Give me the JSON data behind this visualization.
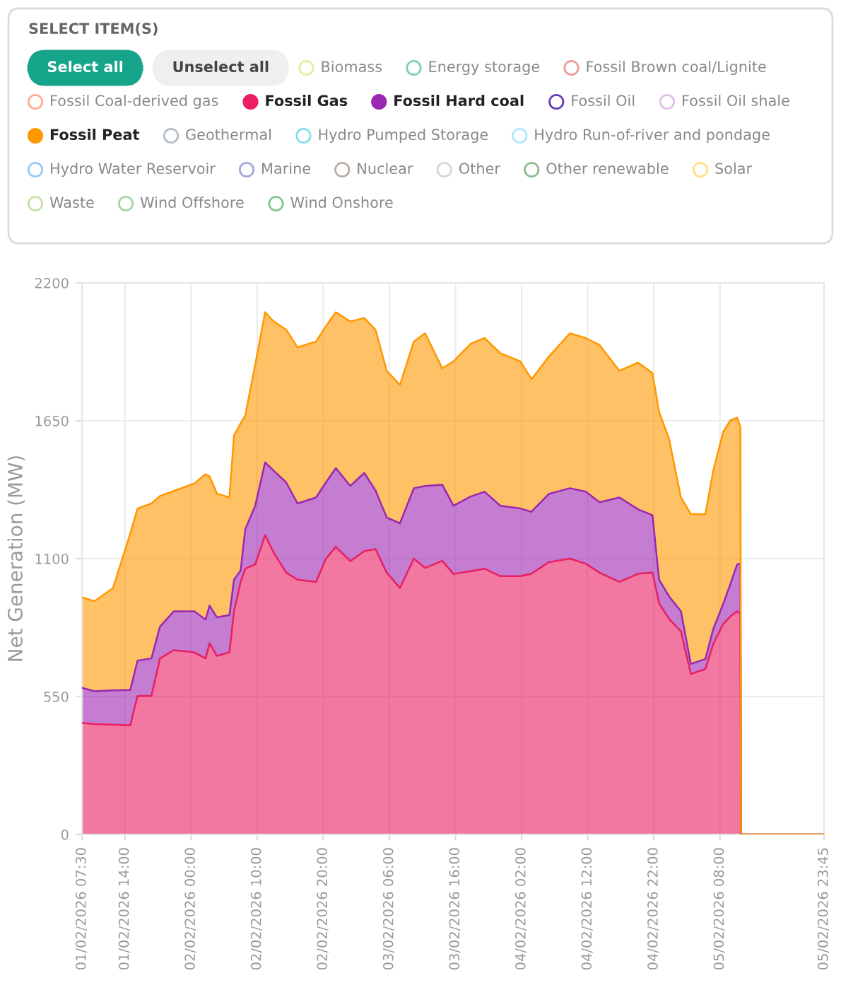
{
  "chart_data": {
    "type": "area",
    "stacked": true,
    "legend_title": "SELECT ITEM(S)",
    "legend": "top",
    "grid": true,
    "annotations": [
      "Select all",
      "Unselect all"
    ],
    "ylabel": "Net Generation (MW)",
    "ylim": [
      0,
      2200
    ],
    "yticks": [
      0,
      550,
      1100,
      1650,
      2200
    ],
    "xlim": [
      "2026-02-01T07:30",
      "2026-02-05T23:45"
    ],
    "xticks": [
      {
        "value": "2026-02-01T07:30",
        "label": "01/02/2026 07:30"
      },
      {
        "value": "2026-02-01T14:00",
        "label": "01/02/2026 14:00"
      },
      {
        "value": "2026-02-02T00:00",
        "label": "02/02/2026 00:00"
      },
      {
        "value": "2026-02-02T10:00",
        "label": "02/02/2026 10:00"
      },
      {
        "value": "2026-02-02T20:00",
        "label": "02/02/2026 20:00"
      },
      {
        "value": "2026-02-03T06:00",
        "label": "03/02/2026 06:00"
      },
      {
        "value": "2026-02-03T16:00",
        "label": "03/02/2026 16:00"
      },
      {
        "value": "2026-02-04T02:00",
        "label": "04/02/2026 02:00"
      },
      {
        "value": "2026-02-04T12:00",
        "label": "04/02/2026 12:00"
      },
      {
        "value": "2026-02-04T22:00",
        "label": "04/02/2026 22:00"
      },
      {
        "value": "2026-02-05T08:00",
        "label": "05/02/2026 08:00"
      },
      {
        "value": "2026-02-05T23:45",
        "label": "05/02/2026 23:45"
      }
    ],
    "x": [
      "2026-02-01T07:30",
      "2026-02-01T09:24",
      "2026-02-01T12:12",
      "2026-02-01T14:48",
      "2026-02-01T15:54",
      "2026-02-01T18:00",
      "2026-02-01T19:18",
      "2026-02-01T21:24",
      "2026-02-02T00:30",
      "2026-02-02T02:12",
      "2026-02-02T02:48",
      "2026-02-02T03:54",
      "2026-02-02T05:48",
      "2026-02-02T06:30",
      "2026-02-02T07:30",
      "2026-02-02T08:12",
      "2026-02-02T09:42",
      "2026-02-02T11:12",
      "2026-02-02T12:30",
      "2026-02-02T14:24",
      "2026-02-02T16:06",
      "2026-02-02T18:54",
      "2026-02-02T20:24",
      "2026-02-02T21:54",
      "2026-02-03T00:06",
      "2026-02-03T02:12",
      "2026-02-03T03:54",
      "2026-02-03T05:36",
      "2026-02-03T07:36",
      "2026-02-03T09:42",
      "2026-02-03T11:24",
      "2026-02-03T14:00",
      "2026-02-03T15:42",
      "2026-02-03T18:18",
      "2026-02-03T20:24",
      "2026-02-03T22:48",
      "2026-02-04T01:48",
      "2026-02-04T03:30",
      "2026-02-04T06:06",
      "2026-02-04T09:18",
      "2026-02-04T11:42",
      "2026-02-04T13:48",
      "2026-02-04T16:48",
      "2026-02-04T19:36",
      "2026-02-04T21:48",
      "2026-02-04T22:48",
      "2026-02-05T00:18",
      "2026-02-05T02:06",
      "2026-02-05T03:36",
      "2026-02-05T05:48",
      "2026-02-05T07:00",
      "2026-02-05T08:30",
      "2026-02-05T09:36",
      "2026-02-05T10:36",
      "2026-02-05T11:06",
      "2026-02-05T11:12",
      "2026-02-05T23:45"
    ],
    "series": [
      {
        "name": "Biomass",
        "color": "#e6ee9c",
        "values": [
          null,
          null,
          null,
          null,
          null,
          null,
          null,
          null,
          null,
          null,
          null,
          null,
          null,
          null,
          null,
          null,
          null,
          null,
          null,
          null,
          null,
          null,
          null,
          null,
          null,
          null,
          null,
          null,
          null,
          null,
          null,
          null,
          null,
          null,
          null,
          null,
          null,
          null,
          null,
          null,
          null,
          null,
          null,
          null,
          null,
          null,
          null,
          null,
          null,
          null,
          null,
          null,
          null,
          null,
          null,
          null,
          null
        ]
      },
      {
        "name": "Energy storage",
        "color": "#80cbc4",
        "values": [
          null,
          null,
          null,
          null,
          null,
          null,
          null,
          null,
          null,
          null,
          null,
          null,
          null,
          null,
          null,
          null,
          null,
          null,
          null,
          null,
          null,
          null,
          null,
          null,
          null,
          null,
          null,
          null,
          null,
          null,
          null,
          null,
          null,
          null,
          null,
          null,
          null,
          null,
          null,
          null,
          null,
          null,
          null,
          null,
          null,
          null,
          null,
          null,
          null,
          null,
          null,
          null,
          null,
          null,
          null,
          null,
          null
        ]
      },
      {
        "name": "Fossil Brown coal/Lignite",
        "color": "#ef9a9a",
        "values": [
          null,
          null,
          null,
          null,
          null,
          null,
          null,
          null,
          null,
          null,
          null,
          null,
          null,
          null,
          null,
          null,
          null,
          null,
          null,
          null,
          null,
          null,
          null,
          null,
          null,
          null,
          null,
          null,
          null,
          null,
          null,
          null,
          null,
          null,
          null,
          null,
          null,
          null,
          null,
          null,
          null,
          null,
          null,
          null,
          null,
          null,
          null,
          null,
          null,
          null,
          null,
          null,
          null,
          null,
          null,
          null,
          null
        ]
      },
      {
        "name": "Fossil Coal-derived gas",
        "color": "#ffab91",
        "values": [
          null,
          null,
          null,
          null,
          null,
          null,
          null,
          null,
          null,
          null,
          null,
          null,
          null,
          null,
          null,
          null,
          null,
          null,
          null,
          null,
          null,
          null,
          null,
          null,
          null,
          null,
          null,
          null,
          null,
          null,
          null,
          null,
          null,
          null,
          null,
          null,
          null,
          null,
          null,
          null,
          null,
          null,
          null,
          null,
          null,
          null,
          null,
          null,
          null,
          null,
          null,
          null,
          null,
          null,
          null,
          null,
          null
        ]
      },
      {
        "name": "Fossil Gas",
        "color": "#e91e63",
        "values": [
          445,
          440,
          438,
          435,
          552,
          552,
          702,
          735,
          726,
          702,
          763,
          712,
          726,
          890,
          1007,
          1060,
          1077,
          1194,
          1124,
          1044,
          1016,
          1007,
          1100,
          1147,
          1090,
          1130,
          1138,
          1044,
          983,
          1100,
          1063,
          1091,
          1039,
          1050,
          1060,
          1030,
          1030,
          1040,
          1086,
          1100,
          1080,
          1044,
          1007,
          1040,
          1044,
          922,
          860,
          810,
          640,
          660,
          760,
          840,
          870,
          890,
          880,
          0,
          0
        ]
      },
      {
        "name": "Fossil Hard coal",
        "color": "#9c27b0",
        "values": [
          140,
          131,
          137,
          141,
          141,
          150,
          127,
          155,
          164,
          155,
          150,
          154,
          149,
          126,
          46,
          157,
          234,
          290,
          327,
          360,
          304,
          337,
          304,
          314,
          300,
          312,
          234,
          220,
          258,
          281,
          327,
          304,
          272,
          298,
          307,
          281,
          270,
          247,
          272,
          281,
          287,
          281,
          337,
          257,
          229,
          94,
          90,
          80,
          40,
          40,
          60,
          80,
          130,
          187,
          200,
          0,
          0
        ]
      },
      {
        "name": "Fossil Oil",
        "color": "#673ab7",
        "values": [
          null,
          null,
          null,
          null,
          null,
          null,
          null,
          null,
          null,
          null,
          null,
          null,
          null,
          null,
          null,
          null,
          null,
          null,
          null,
          null,
          null,
          null,
          null,
          null,
          null,
          null,
          null,
          null,
          null,
          null,
          null,
          null,
          null,
          null,
          null,
          null,
          null,
          null,
          null,
          null,
          null,
          null,
          null,
          null,
          null,
          null,
          null,
          null,
          null,
          null,
          null,
          null,
          null,
          null,
          null,
          null,
          null
        ]
      },
      {
        "name": "Fossil Oil shale",
        "color": "#e1bee7",
        "values": [
          null,
          null,
          null,
          null,
          null,
          null,
          null,
          null,
          null,
          null,
          null,
          null,
          null,
          null,
          null,
          null,
          null,
          null,
          null,
          null,
          null,
          null,
          null,
          null,
          null,
          null,
          null,
          null,
          null,
          null,
          null,
          null,
          null,
          null,
          null,
          null,
          null,
          null,
          null,
          null,
          null,
          null,
          null,
          null,
          null,
          null,
          null,
          null,
          null,
          null,
          null,
          null,
          null,
          null,
          null,
          null,
          null
        ]
      },
      {
        "name": "Fossil Peat",
        "color": "#ff9800",
        "values": [
          361,
          359,
          408,
          624,
          607,
          618,
          521,
          480,
          510,
          580,
          515,
          494,
          469,
          576,
          587,
          454,
          562,
          599,
          595,
          609,
          623,
          622,
          623,
          622,
          656,
          618,
          641,
          585,
          552,
          585,
          609,
          464,
          576,
          609,
          613,
          608,
          587,
          529,
          547,
          618,
          613,
          627,
          505,
          585,
          567,
          669,
          628,
          454,
          598,
          578,
          631,
          686,
          652,
          585,
          544,
          0,
          0
        ]
      },
      {
        "name": "Geothermal",
        "color": "#b0bec5",
        "values": [
          null,
          null,
          null,
          null,
          null,
          null,
          null,
          null,
          null,
          null,
          null,
          null,
          null,
          null,
          null,
          null,
          null,
          null,
          null,
          null,
          null,
          null,
          null,
          null,
          null,
          null,
          null,
          null,
          null,
          null,
          null,
          null,
          null,
          null,
          null,
          null,
          null,
          null,
          null,
          null,
          null,
          null,
          null,
          null,
          null,
          null,
          null,
          null,
          null,
          null,
          null,
          null,
          null,
          null,
          null,
          null,
          null
        ]
      },
      {
        "name": "Hydro Pumped Storage",
        "color": "#80deea",
        "values": [
          null,
          null,
          null,
          null,
          null,
          null,
          null,
          null,
          null,
          null,
          null,
          null,
          null,
          null,
          null,
          null,
          null,
          null,
          null,
          null,
          null,
          null,
          null,
          null,
          null,
          null,
          null,
          null,
          null,
          null,
          null,
          null,
          null,
          null,
          null,
          null,
          null,
          null,
          null,
          null,
          null,
          null,
          null,
          null,
          null,
          null,
          null,
          null,
          null,
          null,
          null,
          null,
          null,
          null,
          null,
          null,
          null
        ]
      },
      {
        "name": "Hydro Run-of-river and pondage",
        "color": "#b3e5fc",
        "values": [
          null,
          null,
          null,
          null,
          null,
          null,
          null,
          null,
          null,
          null,
          null,
          null,
          null,
          null,
          null,
          null,
          null,
          null,
          null,
          null,
          null,
          null,
          null,
          null,
          null,
          null,
          null,
          null,
          null,
          null,
          null,
          null,
          null,
          null,
          null,
          null,
          null,
          null,
          null,
          null,
          null,
          null,
          null,
          null,
          null,
          null,
          null,
          null,
          null,
          null,
          null,
          null,
          null,
          null,
          null,
          null,
          null
        ]
      },
      {
        "name": "Hydro Water Reservoir",
        "color": "#90caf9",
        "values": [
          null,
          null,
          null,
          null,
          null,
          null,
          null,
          null,
          null,
          null,
          null,
          null,
          null,
          null,
          null,
          null,
          null,
          null,
          null,
          null,
          null,
          null,
          null,
          null,
          null,
          null,
          null,
          null,
          null,
          null,
          null,
          null,
          null,
          null,
          null,
          null,
          null,
          null,
          null,
          null,
          null,
          null,
          null,
          null,
          null,
          null,
          null,
          null,
          null,
          null,
          null,
          null,
          null,
          null,
          null,
          null,
          null
        ]
      },
      {
        "name": "Marine",
        "color": "#9fa8da",
        "values": [
          null,
          null,
          null,
          null,
          null,
          null,
          null,
          null,
          null,
          null,
          null,
          null,
          null,
          null,
          null,
          null,
          null,
          null,
          null,
          null,
          null,
          null,
          null,
          null,
          null,
          null,
          null,
          null,
          null,
          null,
          null,
          null,
          null,
          null,
          null,
          null,
          null,
          null,
          null,
          null,
          null,
          null,
          null,
          null,
          null,
          null,
          null,
          null,
          null,
          null,
          null,
          null,
          null,
          null,
          null,
          null,
          null
        ]
      },
      {
        "name": "Nuclear",
        "color": "#bcaaa4",
        "values": [
          null,
          null,
          null,
          null,
          null,
          null,
          null,
          null,
          null,
          null,
          null,
          null,
          null,
          null,
          null,
          null,
          null,
          null,
          null,
          null,
          null,
          null,
          null,
          null,
          null,
          null,
          null,
          null,
          null,
          null,
          null,
          null,
          null,
          null,
          null,
          null,
          null,
          null,
          null,
          null,
          null,
          null,
          null,
          null,
          null,
          null,
          null,
          null,
          null,
          null,
          null,
          null,
          null,
          null,
          null,
          null,
          null
        ]
      },
      {
        "name": "Other",
        "color": "#cfd8dc",
        "values": [
          null,
          null,
          null,
          null,
          null,
          null,
          null,
          null,
          null,
          null,
          null,
          null,
          null,
          null,
          null,
          null,
          null,
          null,
          null,
          null,
          null,
          null,
          null,
          null,
          null,
          null,
          null,
          null,
          null,
          null,
          null,
          null,
          null,
          null,
          null,
          null,
          null,
          null,
          null,
          null,
          null,
          null,
          null,
          null,
          null,
          null,
          null,
          null,
          null,
          null,
          null,
          null,
          null,
          null,
          null,
          null,
          null
        ]
      },
      {
        "name": "Other renewable",
        "color": "#8fbc8f",
        "values": [
          null,
          null,
          null,
          null,
          null,
          null,
          null,
          null,
          null,
          null,
          null,
          null,
          null,
          null,
          null,
          null,
          null,
          null,
          null,
          null,
          null,
          null,
          null,
          null,
          null,
          null,
          null,
          null,
          null,
          null,
          null,
          null,
          null,
          null,
          null,
          null,
          null,
          null,
          null,
          null,
          null,
          null,
          null,
          null,
          null,
          null,
          null,
          null,
          null,
          null,
          null,
          null,
          null,
          null,
          null,
          null,
          null
        ]
      },
      {
        "name": "Solar",
        "color": "#ffe082",
        "values": [
          null,
          null,
          null,
          null,
          null,
          null,
          null,
          null,
          null,
          null,
          null,
          null,
          null,
          null,
          null,
          null,
          null,
          null,
          null,
          null,
          null,
          null,
          null,
          null,
          null,
          null,
          null,
          null,
          null,
          null,
          null,
          null,
          null,
          null,
          null,
          null,
          null,
          null,
          null,
          null,
          null,
          null,
          null,
          null,
          null,
          null,
          null,
          null,
          null,
          null,
          null,
          null,
          null,
          null,
          null,
          null,
          null
        ]
      },
      {
        "name": "Waste",
        "color": "#c5e1a5",
        "values": [
          null,
          null,
          null,
          null,
          null,
          null,
          null,
          null,
          null,
          null,
          null,
          null,
          null,
          null,
          null,
          null,
          null,
          null,
          null,
          null,
          null,
          null,
          null,
          null,
          null,
          null,
          null,
          null,
          null,
          null,
          null,
          null,
          null,
          null,
          null,
          null,
          null,
          null,
          null,
          null,
          null,
          null,
          null,
          null,
          null,
          null,
          null,
          null,
          null,
          null,
          null,
          null,
          null,
          null,
          null,
          null,
          null
        ]
      },
      {
        "name": "Wind Offshore",
        "color": "#a5d6a7",
        "values": [
          null,
          null,
          null,
          null,
          null,
          null,
          null,
          null,
          null,
          null,
          null,
          null,
          null,
          null,
          null,
          null,
          null,
          null,
          null,
          null,
          null,
          null,
          null,
          null,
          null,
          null,
          null,
          null,
          null,
          null,
          null,
          null,
          null,
          null,
          null,
          null,
          null,
          null,
          null,
          null,
          null,
          null,
          null,
          null,
          null,
          null,
          null,
          null,
          null,
          null,
          null,
          null,
          null,
          null,
          null,
          null,
          null
        ]
      },
      {
        "name": "Wind Onshore",
        "color": "#81c784",
        "values": [
          null,
          null,
          null,
          null,
          null,
          null,
          null,
          null,
          null,
          null,
          null,
          null,
          null,
          null,
          null,
          null,
          null,
          null,
          null,
          null,
          null,
          null,
          null,
          null,
          null,
          null,
          null,
          null,
          null,
          null,
          null,
          null,
          null,
          null,
          null,
          null,
          null,
          null,
          null,
          null,
          null,
          null,
          null,
          null,
          null,
          null,
          null,
          null,
          null,
          null,
          null,
          null,
          null,
          null,
          null,
          null,
          null
        ]
      }
    ]
  }
}
